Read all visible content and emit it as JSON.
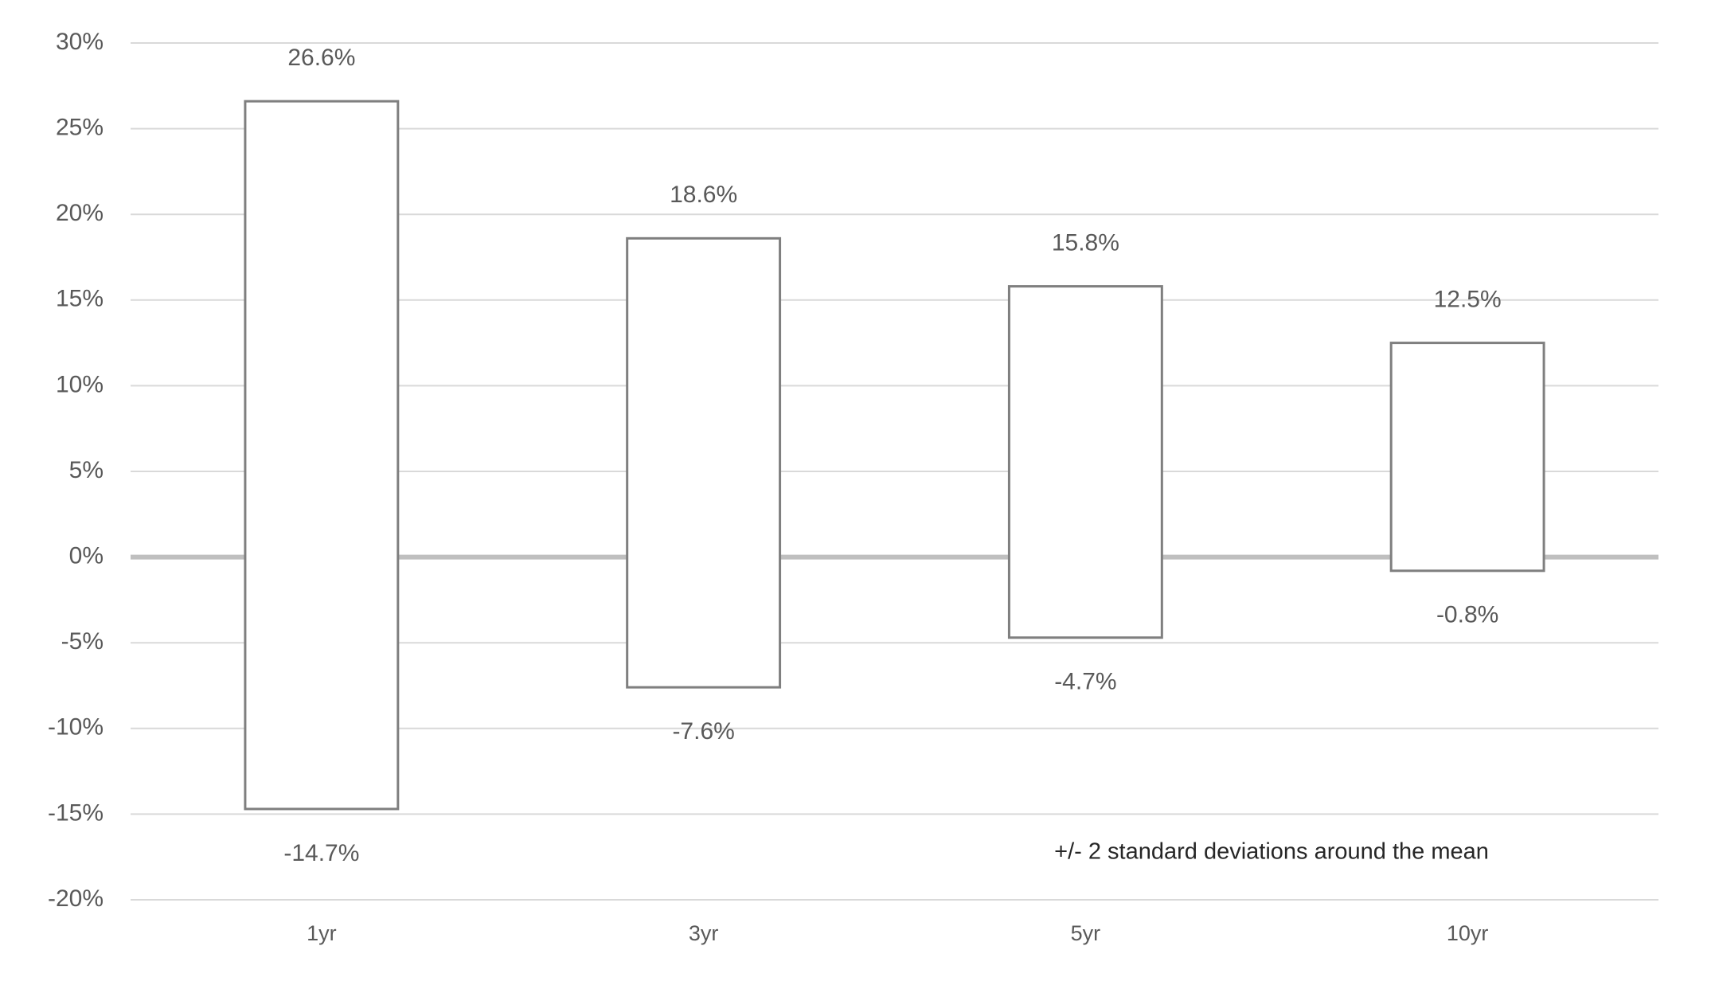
{
  "chart_data": {
    "type": "range-bar",
    "categories": [
      "1yr",
      "3yr",
      "5yr",
      "10yr"
    ],
    "high": {
      "values": [
        26.6,
        18.6,
        15.8,
        12.5
      ],
      "value_labels": [
        "26.6%",
        "18.6%",
        "15.8%",
        "12.5%"
      ]
    },
    "low": {
      "values": [
        -14.7,
        -7.6,
        -4.7,
        -0.8
      ],
      "value_labels": [
        "-14.7%",
        "-7.6%",
        "-4.7%",
        "-0.8%"
      ]
    },
    "color": "#7f7f7f",
    "ylim": [
      -20,
      30
    ],
    "yticks": [
      {
        "value": -20,
        "label": "-20%"
      },
      {
        "value": -15,
        "label": "-15%"
      },
      {
        "value": -10,
        "label": "-10%"
      },
      {
        "value": -5,
        "label": "-5%"
      },
      {
        "value": 0,
        "label": "0%"
      },
      {
        "value": 5,
        "label": "5%"
      },
      {
        "value": 10,
        "label": "10%"
      },
      {
        "value": 15,
        "label": "15%"
      },
      {
        "value": 20,
        "label": "20%"
      },
      {
        "value": 25,
        "label": "25%"
      },
      {
        "value": 30,
        "label": "30%"
      }
    ],
    "grid": true,
    "annotation": "+/- 2 standard deviations around the mean"
  }
}
